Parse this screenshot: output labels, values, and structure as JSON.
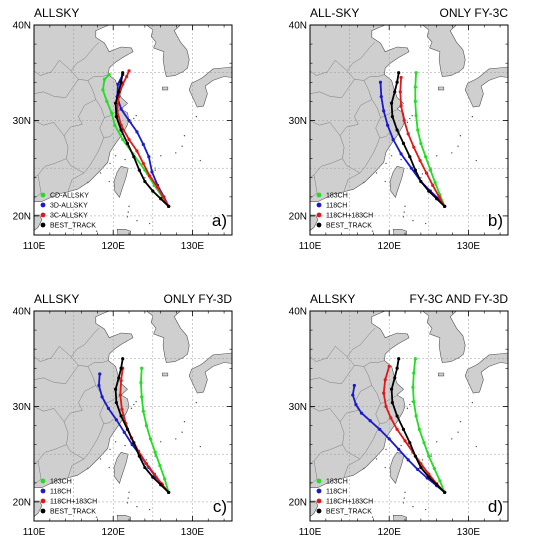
{
  "colors": {
    "ocean": "#ffffff",
    "land": "#cfcfcf",
    "coast": "#555555",
    "province": "#7a7a7a",
    "grid": "#9a9a9a",
    "green": "#22dd22",
    "blue": "#1a1acc",
    "red": "#e01818",
    "black": "#000000"
  },
  "chart_data": [
    {
      "type": "line",
      "panel": "a",
      "title_left": "ALLSKY",
      "title_right": "",
      "panel_label": "a)",
      "xlim": [
        110,
        135
      ],
      "ylim": [
        18,
        40
      ],
      "x_ticks": [
        110,
        120,
        130
      ],
      "x_tick_labels": [
        "110E",
        "120E",
        "130E"
      ],
      "y_ticks": [
        20,
        30,
        40
      ],
      "y_tick_labels": [
        "20N",
        "30N",
        "40N"
      ],
      "grid": "dashed",
      "legend_placement": "bottom-left",
      "series": [
        {
          "name": "CD-ALLSKY",
          "color": "green",
          "x": [
            127.0,
            126.2,
            125.2,
            124.0,
            122.5,
            121.2,
            120.2,
            119.8,
            119.2,
            118.7,
            118.9,
            119.5
          ],
          "y": [
            21.0,
            22.0,
            23.2,
            24.8,
            26.5,
            28.0,
            29.5,
            30.8,
            32.0,
            33.2,
            34.3,
            34.8
          ]
        },
        {
          "name": "3D-ALLSKY",
          "color": "blue",
          "x": [
            127.0,
            126.4,
            125.6,
            124.9,
            124.5,
            123.8,
            123.0,
            122.0,
            121.0,
            120.5,
            120.6,
            121.2
          ],
          "y": [
            21.0,
            22.0,
            23.2,
            24.6,
            26.2,
            27.5,
            28.8,
            30.0,
            31.2,
            32.5,
            33.8,
            34.8
          ]
        },
        {
          "name": "3C-ALLSKY",
          "color": "red",
          "x": [
            127.0,
            126.3,
            125.6,
            124.6,
            123.8,
            123.0,
            122.0,
            121.0,
            120.5,
            120.7,
            121.2,
            121.7,
            122.0
          ],
          "y": [
            21.0,
            22.0,
            23.0,
            24.2,
            25.5,
            26.8,
            28.0,
            29.5,
            31.0,
            32.5,
            33.8,
            34.6,
            35.2
          ]
        },
        {
          "name": "BEST_TRACK",
          "color": "black",
          "x": [
            127.0,
            126.0,
            125.0,
            124.0,
            123.3,
            122.6,
            121.8,
            121.0,
            120.4,
            120.3,
            120.7,
            121.0,
            121.2
          ],
          "y": [
            21.0,
            21.8,
            22.6,
            23.6,
            24.8,
            26.2,
            27.6,
            29.0,
            30.4,
            31.8,
            33.0,
            34.0,
            35.0
          ]
        }
      ]
    },
    {
      "type": "line",
      "panel": "b",
      "title_left": "ALL-SKY",
      "title_right": "ONLY FY-3C",
      "panel_label": "b)",
      "xlim": [
        110,
        135
      ],
      "ylim": [
        18,
        40
      ],
      "x_ticks": [
        110,
        120,
        130
      ],
      "x_tick_labels": [
        "110E",
        "120E",
        "130E"
      ],
      "y_ticks": [
        20,
        30,
        40
      ],
      "y_tick_labels": [
        "20N",
        "30N",
        "40N"
      ],
      "grid": "dashed",
      "legend_placement": "bottom-left",
      "series": [
        {
          "name": "183CH",
          "color": "green",
          "x": [
            127.0,
            126.4,
            125.8,
            125.2,
            124.6,
            124.0,
            123.6,
            123.4,
            123.3,
            123.3,
            123.4
          ],
          "y": [
            21.0,
            22.2,
            23.5,
            24.8,
            26.2,
            27.6,
            29.0,
            30.5,
            32.0,
            33.5,
            35.0
          ]
        },
        {
          "name": "118CH",
          "color": "blue",
          "x": [
            127.0,
            126.2,
            125.2,
            124.0,
            122.8,
            121.5,
            120.5,
            119.8,
            119.3,
            119.0,
            118.9
          ],
          "y": [
            21.0,
            21.8,
            22.6,
            23.6,
            25.0,
            26.5,
            28.0,
            29.5,
            31.0,
            32.5,
            34.0
          ]
        },
        {
          "name": "118CH+183CH",
          "color": "red",
          "x": [
            127.0,
            126.3,
            125.5,
            124.7,
            123.9,
            123.1,
            122.4,
            121.9,
            121.5,
            121.4,
            121.5
          ],
          "y": [
            21.0,
            22.0,
            23.2,
            24.5,
            25.8,
            27.2,
            28.6,
            30.0,
            31.5,
            33.0,
            34.5
          ]
        },
        {
          "name": "BEST_TRACK",
          "color": "black",
          "x": [
            127.0,
            126.0,
            125.0,
            124.0,
            123.3,
            122.6,
            121.8,
            121.0,
            120.4,
            120.3,
            120.7,
            121.0,
            121.2
          ],
          "y": [
            21.0,
            21.8,
            22.6,
            23.6,
            24.8,
            26.2,
            27.6,
            29.0,
            30.4,
            31.8,
            33.0,
            34.0,
            35.0
          ]
        }
      ]
    },
    {
      "type": "line",
      "panel": "c",
      "title_left": "ALLSKY",
      "title_right": "ONLY FY-3D",
      "panel_label": "c)",
      "xlim": [
        110,
        135
      ],
      "ylim": [
        18,
        40
      ],
      "x_ticks": [
        110,
        120,
        130
      ],
      "x_tick_labels": [
        "110E",
        "120E",
        "130E"
      ],
      "y_ticks": [
        20,
        30,
        40
      ],
      "y_tick_labels": [
        "20N",
        "30N",
        "40N"
      ],
      "grid": "dashed",
      "legend_placement": "bottom-left",
      "series": [
        {
          "name": "183CH",
          "color": "green",
          "x": [
            127.0,
            126.5,
            125.9,
            125.3,
            124.7,
            124.2,
            123.8,
            123.6,
            123.5,
            123.6
          ],
          "y": [
            21.0,
            22.4,
            23.8,
            25.2,
            26.6,
            28.0,
            29.5,
            31.0,
            32.5,
            34.0
          ]
        },
        {
          "name": "118CH",
          "color": "blue",
          "x": [
            127.0,
            126.2,
            125.4,
            124.5,
            123.5,
            122.4,
            121.4,
            120.4,
            119.4,
            118.6,
            118.2,
            118.3
          ],
          "y": [
            21.0,
            21.8,
            22.6,
            23.6,
            24.8,
            26.0,
            27.3,
            28.6,
            29.8,
            31.0,
            32.2,
            33.4
          ]
        },
        {
          "name": "118CH+183CH",
          "color": "red",
          "x": [
            127.0,
            126.1,
            125.2,
            124.2,
            123.2,
            122.3,
            121.6,
            121.1,
            120.9,
            121.0,
            121.2
          ],
          "y": [
            21.0,
            21.9,
            22.9,
            24.0,
            25.3,
            26.7,
            28.2,
            29.7,
            31.2,
            32.7,
            34.0
          ]
        },
        {
          "name": "BEST_TRACK",
          "color": "black",
          "x": [
            127.0,
            126.0,
            125.0,
            124.0,
            123.3,
            122.6,
            121.8,
            121.0,
            120.4,
            120.3,
            120.7,
            121.0,
            121.2
          ],
          "y": [
            21.0,
            21.8,
            22.6,
            23.6,
            24.8,
            26.2,
            27.6,
            29.0,
            30.4,
            31.8,
            33.0,
            34.0,
            35.0
          ]
        }
      ]
    },
    {
      "type": "line",
      "panel": "d",
      "title_left": "ALLSKY",
      "title_right": "FY-3C AND FY-3D",
      "panel_label": "d)",
      "xlim": [
        110,
        135
      ],
      "ylim": [
        18,
        40
      ],
      "x_ticks": [
        110,
        120,
        130
      ],
      "x_tick_labels": [
        "110E",
        "120E",
        "130E"
      ],
      "y_ticks": [
        20,
        30,
        40
      ],
      "y_tick_labels": [
        "20N",
        "30N",
        "40N"
      ],
      "grid": "dashed",
      "legend_placement": "bottom-left",
      "series": [
        {
          "name": "183CH",
          "color": "green",
          "x": [
            127.0,
            126.4,
            125.7,
            125.0,
            124.4,
            123.8,
            123.4,
            123.1,
            123.0,
            123.1,
            123.3
          ],
          "y": [
            21.0,
            22.2,
            23.5,
            24.8,
            26.2,
            27.6,
            29.0,
            30.5,
            32.0,
            33.5,
            35.0
          ]
        },
        {
          "name": "118CH",
          "color": "blue",
          "x": [
            127.0,
            126.0,
            124.8,
            123.6,
            122.4,
            121.2,
            120.0,
            118.8,
            117.6,
            116.5,
            115.8,
            115.4,
            115.6
          ],
          "y": [
            21.0,
            21.7,
            22.5,
            23.4,
            24.4,
            25.5,
            26.6,
            27.6,
            28.5,
            29.3,
            30.2,
            31.2,
            32.2
          ]
        },
        {
          "name": "118CH+183CH",
          "color": "red",
          "x": [
            127.0,
            126.0,
            125.0,
            124.0,
            123.0,
            122.0,
            121.0,
            120.2,
            119.6,
            119.3,
            119.5,
            120.0
          ],
          "y": [
            21.0,
            21.9,
            22.9,
            24.0,
            25.2,
            26.4,
            27.6,
            28.8,
            30.0,
            31.4,
            32.8,
            34.2
          ]
        },
        {
          "name": "BEST_TRACK",
          "color": "black",
          "x": [
            127.0,
            126.0,
            125.0,
            124.0,
            123.3,
            122.6,
            121.8,
            121.0,
            120.4,
            120.3,
            120.7,
            121.0,
            121.2
          ],
          "y": [
            21.0,
            21.8,
            22.6,
            23.6,
            24.8,
            26.2,
            27.6,
            29.0,
            30.4,
            31.8,
            33.0,
            34.0,
            35.0
          ]
        }
      ]
    }
  ]
}
